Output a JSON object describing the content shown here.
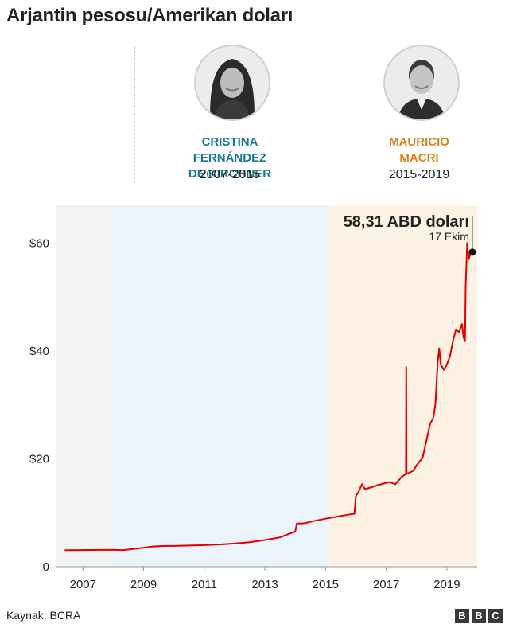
{
  "title": "Arjantin pesosu/Amerikan doları",
  "leaders": [
    {
      "name_line1": "CRISTINA FERNÁNDEZ",
      "name_line2": "DE KIRCHNER",
      "years": "2007-2015",
      "color": "#1b7a92",
      "icon": "portrait-woman-icon"
    },
    {
      "name_line1": "MAURICIO",
      "name_line2": "MACRI",
      "years": "2015-2019",
      "color": "#d9831f",
      "icon": "portrait-man-icon"
    }
  ],
  "source": "Kaynak: BCRA",
  "logo": "BBC",
  "chart_data": {
    "type": "line",
    "xlabel": "",
    "ylabel": "",
    "ylim": [
      0,
      67
    ],
    "xlim": [
      2006.1,
      2020.0
    ],
    "yticks": [
      {
        "value": 0,
        "label": "0"
      },
      {
        "value": 20,
        "label": "$20"
      },
      {
        "value": 40,
        "label": "$40"
      },
      {
        "value": 60,
        "label": "$60"
      }
    ],
    "xticks": [
      "2007",
      "2009",
      "2011",
      "2013",
      "2015",
      "2017",
      "2019"
    ],
    "grid": false,
    "periods": [
      {
        "start": 2006.1,
        "end": 2007.9,
        "color": "#f2f2f2"
      },
      {
        "start": 2007.9,
        "end": 2015.1,
        "color": "#eaf4fa"
      },
      {
        "start": 2015.1,
        "end": 2020.0,
        "color": "#fdf2e3"
      }
    ],
    "series": [
      {
        "color": "#e00000",
        "points": [
          [
            2006.4,
            3.05
          ],
          [
            2007.0,
            3.09
          ],
          [
            2007.5,
            3.12
          ],
          [
            2008.0,
            3.15
          ],
          [
            2008.3,
            3.05
          ],
          [
            2008.6,
            3.25
          ],
          [
            2008.9,
            3.45
          ],
          [
            2009.3,
            3.75
          ],
          [
            2009.7,
            3.85
          ],
          [
            2010.0,
            3.85
          ],
          [
            2010.5,
            3.93
          ],
          [
            2011.0,
            4.0
          ],
          [
            2011.5,
            4.12
          ],
          [
            2012.0,
            4.3
          ],
          [
            2012.5,
            4.55
          ],
          [
            2013.0,
            4.95
          ],
          [
            2013.5,
            5.45
          ],
          [
            2013.8,
            6.1
          ],
          [
            2014.0,
            6.5
          ],
          [
            2014.05,
            8.0
          ],
          [
            2014.3,
            8.05
          ],
          [
            2014.6,
            8.45
          ],
          [
            2015.0,
            8.9
          ],
          [
            2015.4,
            9.3
          ],
          [
            2015.8,
            9.7
          ],
          [
            2015.95,
            9.8
          ],
          [
            2016.0,
            13.1
          ],
          [
            2016.1,
            14.0
          ],
          [
            2016.2,
            15.3
          ],
          [
            2016.3,
            14.4
          ],
          [
            2016.5,
            14.7
          ],
          [
            2016.7,
            15.1
          ],
          [
            2016.9,
            15.4
          ],
          [
            2017.1,
            15.7
          ],
          [
            2017.3,
            15.3
          ],
          [
            2017.5,
            16.6
          ],
          [
            2017.65,
            17.2
          ],
          [
            2017.66,
            37.0
          ],
          [
            2017.67,
            17.2
          ],
          [
            2017.9,
            17.8
          ],
          [
            2018.0,
            18.8
          ],
          [
            2018.2,
            20.2
          ],
          [
            2018.35,
            24.0
          ],
          [
            2018.45,
            26.5
          ],
          [
            2018.55,
            27.5
          ],
          [
            2018.62,
            30.0
          ],
          [
            2018.7,
            38.0
          ],
          [
            2018.75,
            40.5
          ],
          [
            2018.8,
            37.5
          ],
          [
            2018.9,
            36.5
          ],
          [
            2019.0,
            37.5
          ],
          [
            2019.1,
            39.0
          ],
          [
            2019.2,
            41.8
          ],
          [
            2019.3,
            44.0
          ],
          [
            2019.4,
            43.5
          ],
          [
            2019.5,
            45.0
          ],
          [
            2019.55,
            42.5
          ],
          [
            2019.6,
            41.8
          ],
          [
            2019.62,
            52.0
          ],
          [
            2019.67,
            60.0
          ],
          [
            2019.72,
            57.0
          ],
          [
            2019.78,
            58.0
          ],
          [
            2019.84,
            58.31
          ]
        ]
      }
    ],
    "annotation": {
      "value": "58,31 ABD doları",
      "date": "17 Ekim",
      "x": 2019.84,
      "y": 58.31
    }
  }
}
